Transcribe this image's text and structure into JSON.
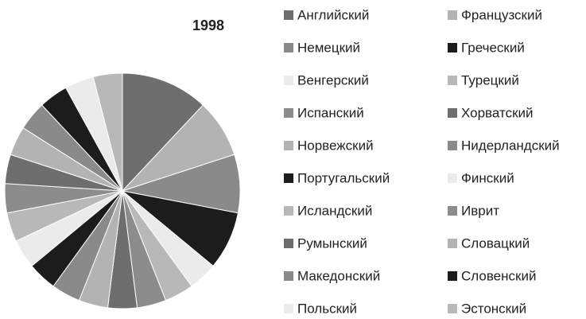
{
  "chart_data": {
    "type": "pie",
    "title": "1998",
    "categories": [
      "Английский",
      "Французский",
      "Немецкий",
      "Греческий",
      "Венгерский",
      "Турецкий",
      "Испанский",
      "Хорватский",
      "Норвежский",
      "Нидерландский",
      "Португальский",
      "Финский",
      "Исландский",
      "Иврит",
      "Румынский",
      "Словацкий",
      "Македонский",
      "Словенский",
      "Польский",
      "Эстонский"
    ],
    "values": [
      12,
      8,
      8,
      8,
      4,
      4,
      4,
      4,
      4,
      4,
      4,
      4,
      4,
      4,
      4,
      4,
      4,
      4,
      4,
      4
    ],
    "colors": [
      "#6e6e6e",
      "#b3b3b3",
      "#8a8a8a",
      "#1c1c1c",
      "#ebebeb",
      "#b8b8b8",
      "#8c8c8c",
      "#6e6e6e",
      "#b3b3b3",
      "#8a8a8a",
      "#1c1c1c",
      "#ebebeb",
      "#b8b8b8",
      "#8c8c8c",
      "#6e6e6e",
      "#b3b3b3",
      "#8a8a8a",
      "#1c1c1c",
      "#ebebeb",
      "#b8b8b8"
    ],
    "legend": "right"
  }
}
